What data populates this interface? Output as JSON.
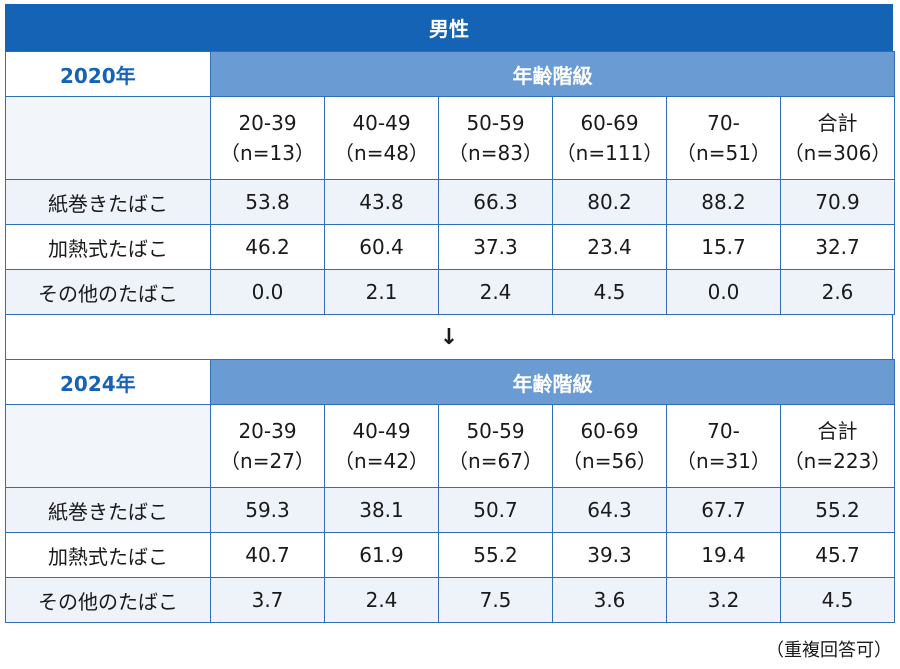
{
  "title": "男性",
  "age_header": "年齢階級",
  "columns": [
    {
      "label": "20-39"
    },
    {
      "label": "40-49"
    },
    {
      "label": "50-59"
    },
    {
      "label": "60-69"
    },
    {
      "label": "70-"
    },
    {
      "label": "合計"
    }
  ],
  "blocks": [
    {
      "year": "2020年",
      "n": [
        "（n=13）",
        "（n=48）",
        "（n=83）",
        "（n=111）",
        "（n=51）",
        "（n=306）"
      ],
      "rows": [
        {
          "label": "紙巻きたばこ",
          "values": [
            "53.8",
            "43.8",
            "66.3",
            "80.2",
            "88.2",
            "70.9"
          ]
        },
        {
          "label": "加熱式たばこ",
          "values": [
            "46.2",
            "60.4",
            "37.3",
            "23.4",
            "15.7",
            "32.7"
          ]
        },
        {
          "label": "その他のたばこ",
          "values": [
            "0.0",
            "2.1",
            "2.4",
            "4.5",
            "0.0",
            "2.6"
          ]
        }
      ]
    },
    {
      "year": "2024年",
      "n": [
        "（n=27）",
        "（n=42）",
        "（n=67）",
        "（n=56）",
        "（n=31）",
        "（n=223）"
      ],
      "rows": [
        {
          "label": "紙巻きたばこ",
          "values": [
            "59.3",
            "38.1",
            "50.7",
            "64.3",
            "67.7",
            "55.2"
          ]
        },
        {
          "label": "加熱式たばこ",
          "values": [
            "40.7",
            "61.9",
            "55.2",
            "39.3",
            "19.4",
            "45.7"
          ]
        },
        {
          "label": "その他のたばこ",
          "values": [
            "3.7",
            "2.4",
            "7.5",
            "3.6",
            "3.2",
            "4.5"
          ]
        }
      ]
    }
  ],
  "arrow": "↓",
  "note": "（重複回答可）"
}
